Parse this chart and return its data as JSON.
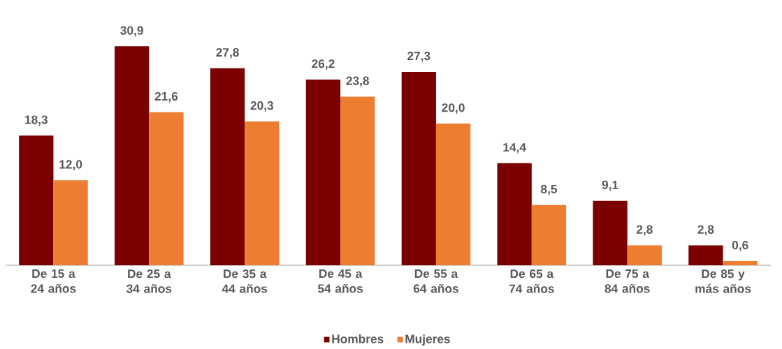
{
  "chart_data": {
    "type": "bar",
    "categories": [
      "De 15 a 24 años",
      "De 25 a 34 años",
      "De 35 a 44 años",
      "De 45 a 54 años",
      "De 55 a 64 años",
      "De 65 a 74 años",
      "De 75 a 84 años",
      "De 85 y más años"
    ],
    "series": [
      {
        "name": "Hombres",
        "color": "#7b0000",
        "values": [
          18.3,
          30.9,
          27.8,
          26.2,
          27.3,
          14.4,
          9.1,
          2.8
        ],
        "value_labels": [
          "18,3",
          "30,9",
          "27,8",
          "26,2",
          "27,3",
          "14,4",
          "9,1",
          "2,8"
        ]
      },
      {
        "name": "Mujeres",
        "color": "#ed7d31",
        "values": [
          12.0,
          21.6,
          20.3,
          23.8,
          20.0,
          8.5,
          2.8,
          0.6
        ],
        "value_labels": [
          "12,0",
          "21,6",
          "20,3",
          "23,8",
          "20,0",
          "8,5",
          "2,8",
          "0,6"
        ]
      }
    ],
    "legend": "bottom"
  }
}
